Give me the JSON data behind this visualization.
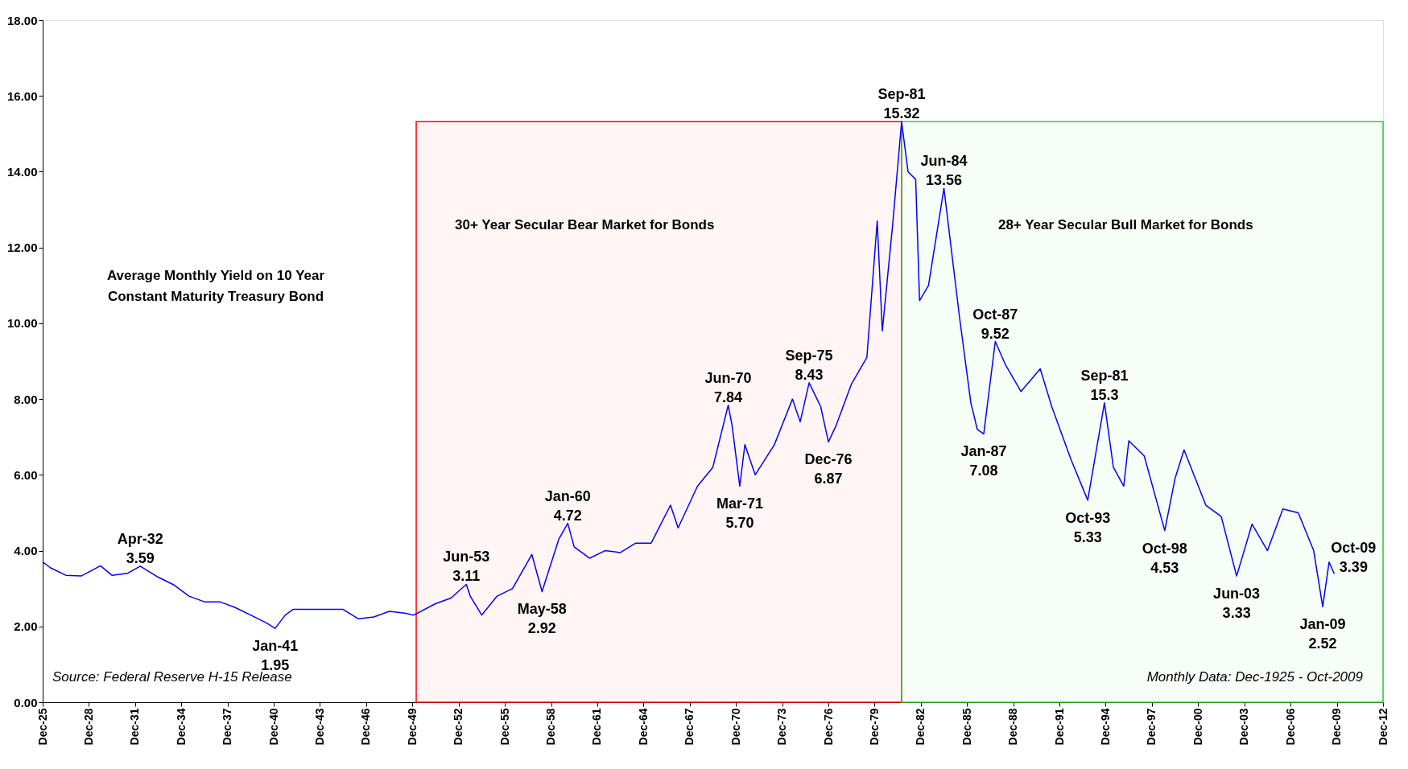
{
  "chart_data": {
    "type": "line",
    "title": "Average Monthly Yield on 10 Year\nConstant Maturity Treasury Bond",
    "series": [
      {
        "color": "#0000ff",
        "x": [
          "1925-12",
          "1926-06",
          "1927-06",
          "1928-06",
          "1929-09",
          "1930-06",
          "1931-06",
          "1932-04",
          "1933-06",
          "1934-06",
          "1935-06",
          "1936-06",
          "1937-06",
          "1938-06",
          "1939-06",
          "1940-06",
          "1941-01",
          "1941-09",
          "1942-03",
          "1943-06",
          "1945-06",
          "1946-06",
          "1947-06",
          "1948-06",
          "1949-06",
          "1950-01",
          "1951-06",
          "1952-06",
          "1953-06",
          "1953-09",
          "1954-06",
          "1955-06",
          "1956-06",
          "1957-09",
          "1958-05",
          "1959-06",
          "1960-01",
          "1960-06",
          "1961-06",
          "1962-06",
          "1963-06",
          "1964-06",
          "1965-06",
          "1966-09",
          "1967-03",
          "1968-06",
          "1969-06",
          "1970-06",
          "1970-09",
          "1971-03",
          "1971-07",
          "1972-03",
          "1973-06",
          "1974-08",
          "1975-02",
          "1975-09",
          "1976-06",
          "1976-12",
          "1977-06",
          "1978-06",
          "1979-06",
          "1980-02",
          "1980-06",
          "1981-02",
          "1981-09",
          "1982-02",
          "1982-08",
          "1982-11",
          "1983-06",
          "1984-06",
          "1985-06",
          "1986-03",
          "1986-08",
          "1987-01",
          "1987-10",
          "1988-06",
          "1989-06",
          "1990-09",
          "1991-06",
          "1992-09",
          "1993-10",
          "1994-11",
          "1995-06",
          "1996-02",
          "1996-06",
          "1997-06",
          "1998-10",
          "1999-06",
          "2000-01",
          "2001-06",
          "2002-06",
          "2003-06",
          "2004-06",
          "2005-06",
          "2006-06",
          "2007-06",
          "2008-06",
          "2009-01",
          "2009-06",
          "2009-10"
        ],
        "values": [
          3.7,
          3.55,
          3.35,
          3.33,
          3.6,
          3.35,
          3.4,
          3.59,
          3.3,
          3.1,
          2.8,
          2.65,
          2.65,
          2.5,
          2.3,
          2.1,
          1.95,
          2.3,
          2.45,
          2.45,
          2.45,
          2.2,
          2.25,
          2.4,
          2.35,
          2.3,
          2.6,
          2.75,
          3.11,
          2.8,
          2.3,
          2.8,
          3.0,
          3.9,
          2.92,
          4.3,
          4.72,
          4.1,
          3.8,
          4.0,
          3.95,
          4.2,
          4.2,
          5.2,
          4.6,
          5.7,
          6.2,
          7.84,
          7.3,
          5.7,
          6.8,
          6.0,
          6.8,
          8.0,
          7.4,
          8.43,
          7.8,
          6.87,
          7.3,
          8.4,
          9.1,
          12.7,
          9.8,
          12.6,
          15.32,
          14.0,
          13.8,
          10.6,
          11.0,
          13.56,
          10.2,
          7.9,
          7.2,
          7.08,
          9.52,
          8.9,
          8.2,
          8.8,
          7.8,
          6.4,
          5.33,
          7.9,
          6.2,
          5.7,
          6.9,
          6.5,
          4.53,
          5.9,
          6.66,
          5.2,
          4.9,
          3.33,
          4.7,
          4.0,
          5.1,
          5.0,
          4.0,
          2.52,
          3.7,
          3.39
        ]
      }
    ],
    "xlim": [
      "1925-12",
      "2012-12"
    ],
    "xticks": [
      {
        "value": "1925-12",
        "label": "Dec-25"
      },
      {
        "value": "1928-12",
        "label": "Dec-28"
      },
      {
        "value": "1931-12",
        "label": "Dec-31"
      },
      {
        "value": "1934-12",
        "label": "Dec-34"
      },
      {
        "value": "1937-12",
        "label": "Dec-37"
      },
      {
        "value": "1940-12",
        "label": "Dec-40"
      },
      {
        "value": "1943-12",
        "label": "Dec-43"
      },
      {
        "value": "1946-12",
        "label": "Dec-46"
      },
      {
        "value": "1949-12",
        "label": "Dec-49"
      },
      {
        "value": "1952-12",
        "label": "Dec-52"
      },
      {
        "value": "1955-12",
        "label": "Dec-55"
      },
      {
        "value": "1958-12",
        "label": "Dec-58"
      },
      {
        "value": "1961-12",
        "label": "Dec-61"
      },
      {
        "value": "1964-12",
        "label": "Dec-64"
      },
      {
        "value": "1967-12",
        "label": "Dec-67"
      },
      {
        "value": "1970-12",
        "label": "Dec-70"
      },
      {
        "value": "1973-12",
        "label": "Dec-73"
      },
      {
        "value": "1976-12",
        "label": "Dec-76"
      },
      {
        "value": "1979-12",
        "label": "Dec-79"
      },
      {
        "value": "1982-12",
        "label": "Dec-82"
      },
      {
        "value": "1985-12",
        "label": "Dec-85"
      },
      {
        "value": "1988-12",
        "label": "Dec-88"
      },
      {
        "value": "1991-12",
        "label": "Dec-91"
      },
      {
        "value": "1994-12",
        "label": "Dec-94"
      },
      {
        "value": "1997-12",
        "label": "Dec-97"
      },
      {
        "value": "2000-12",
        "label": "Dec-00"
      },
      {
        "value": "2003-12",
        "label": "Dec-03"
      },
      {
        "value": "2006-12",
        "label": "Dec-06"
      },
      {
        "value": "2009-12",
        "label": "Dec-09"
      },
      {
        "value": "2012-12",
        "label": "Dec-12"
      }
    ],
    "ylim": [
      0,
      18
    ],
    "yticks": [
      {
        "value": 0,
        "label": "0.00"
      },
      {
        "value": 2,
        "label": "2.00"
      },
      {
        "value": 4,
        "label": "4.00"
      },
      {
        "value": 6,
        "label": "6.00"
      },
      {
        "value": 8,
        "label": "8.00"
      },
      {
        "value": 10,
        "label": "10.00"
      },
      {
        "value": 12,
        "label": "12.00"
      },
      {
        "value": 14,
        "label": "14.00"
      },
      {
        "value": 16,
        "label": "16.00"
      },
      {
        "value": 18,
        "label": "18.00"
      }
    ],
    "bands": [
      {
        "axis": "x",
        "from": "1950-03",
        "to": "1981-09",
        "label": "30+ Year Secular Bear Market for Bonds",
        "color": "#ff0000"
      },
      {
        "axis": "x",
        "from": "1981-09",
        "to": "2012-12",
        "label": "28+ Year Secular Bull Market for Bonds",
        "color": "#33cc33"
      }
    ],
    "annotations": [
      {
        "text": "Apr-32\n3.59",
        "x": "1932-04",
        "y": 3.59
      },
      {
        "text": "Jan-41\n1.95",
        "x": "1941-01",
        "y": 1.95
      },
      {
        "text": "Jun-53\n3.11",
        "x": "1953-06",
        "y": 3.11
      },
      {
        "text": "May-58\n2.92",
        "x": "1958-05",
        "y": 2.92
      },
      {
        "text": "Jan-60\n4.72",
        "x": "1960-01",
        "y": 4.72
      },
      {
        "text": "Jun-70\n7.84",
        "x": "1970-06",
        "y": 7.84
      },
      {
        "text": "Mar-71\n5.70",
        "x": "1971-03",
        "y": 5.7
      },
      {
        "text": "Sep-75\n8.43",
        "x": "1975-09",
        "y": 8.43
      },
      {
        "text": "Dec-76\n6.87",
        "x": "1976-12",
        "y": 6.87
      },
      {
        "text": "Sep-81\n15.32",
        "x": "1981-09",
        "y": 15.32
      },
      {
        "text": "Jun-84\n13.56",
        "x": "1984-06",
        "y": 13.56
      },
      {
        "text": "Jan-87\n7.08",
        "x": "1987-01",
        "y": 7.08
      },
      {
        "text": "Oct-87\n9.52",
        "x": "1987-10",
        "y": 9.52
      },
      {
        "text": "Oct-93\n5.33",
        "x": "1993-10",
        "y": 5.33
      },
      {
        "text": "Sep-81\n15.3",
        "x": "1994-11",
        "y": 7.9
      },
      {
        "text": "Oct-98\n4.53",
        "x": "1998-10",
        "y": 4.53
      },
      {
        "text": "Jun-03\n3.33",
        "x": "2003-06",
        "y": 3.33
      },
      {
        "text": "Jan-09\n2.52",
        "x": "2009-01",
        "y": 2.52
      },
      {
        "text": "Oct-09\n3.39",
        "x": "2009-10",
        "y": 3.39
      },
      "Source:  Federal Reserve H-15 Release",
      "Monthly Data: Dec-1925 - Oct-2009"
    ]
  }
}
